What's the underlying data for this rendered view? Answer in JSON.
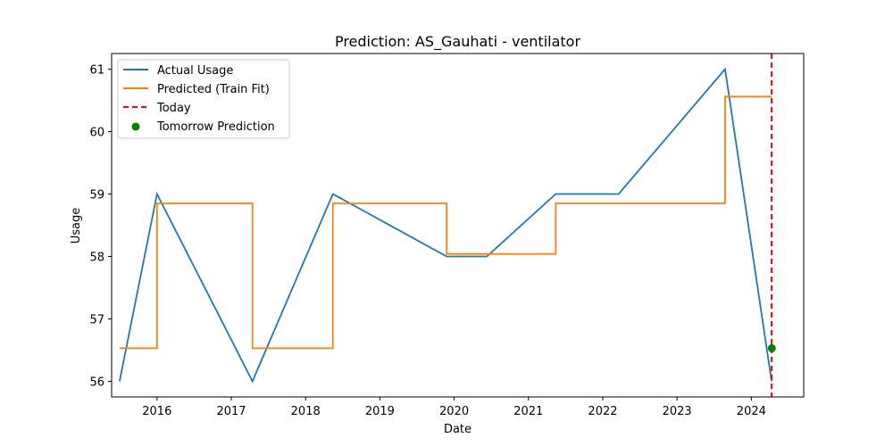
{
  "chart_data": {
    "type": "line",
    "title": "Prediction: AS_Gauhati - ventilator",
    "xlabel": "Date",
    "ylabel": "Usage",
    "x_ticks": [
      "2016",
      "2017",
      "2018",
      "2019",
      "2020",
      "2021",
      "2022",
      "2023",
      "2024"
    ],
    "y_ticks": [
      "56",
      "57",
      "58",
      "59",
      "60",
      "61"
    ],
    "xlim": [
      "2015-05-23",
      "2024-09-15"
    ],
    "ylim": [
      55.75,
      61.25
    ],
    "grid": false,
    "legend_position": "top-left",
    "series": [
      {
        "name": "Actual Usage",
        "color": "#1f77b4",
        "style": "solid",
        "points": [
          {
            "x": "2015-07-01",
            "y": 56
          },
          {
            "x": "2016-01-01",
            "y": 59
          },
          {
            "x": "2017-04-15",
            "y": 56
          },
          {
            "x": "2018-05-15",
            "y": 59
          },
          {
            "x": "2019-11-25",
            "y": 58
          },
          {
            "x": "2020-06-10",
            "y": 58
          },
          {
            "x": "2021-05-15",
            "y": 59
          },
          {
            "x": "2022-03-20",
            "y": 59
          },
          {
            "x": "2023-08-25",
            "y": 61
          },
          {
            "x": "2024-04-10",
            "y": 56
          }
        ]
      },
      {
        "name": "Predicted (Train Fit)",
        "color": "#ff7f0e",
        "style": "step",
        "points": [
          {
            "x": "2015-07-01",
            "y": 56.53
          },
          {
            "x": "2016-01-01",
            "y": 58.85
          },
          {
            "x": "2017-04-15",
            "y": 56.53
          },
          {
            "x": "2018-05-15",
            "y": 58.85
          },
          {
            "x": "2019-11-25",
            "y": 58.04
          },
          {
            "x": "2021-05-15",
            "y": 58.85
          },
          {
            "x": "2023-08-25",
            "y": 60.56
          },
          {
            "x": "2024-04-10",
            "y": 60.56
          }
        ]
      }
    ],
    "today": {
      "name": "Today",
      "x": "2024-04-10",
      "color": "#ff0000",
      "style": "dashed"
    },
    "tomorrow_prediction": {
      "name": "Tomorrow Prediction",
      "x": "2024-04-11",
      "y": 56.53,
      "color": "#008000"
    }
  }
}
